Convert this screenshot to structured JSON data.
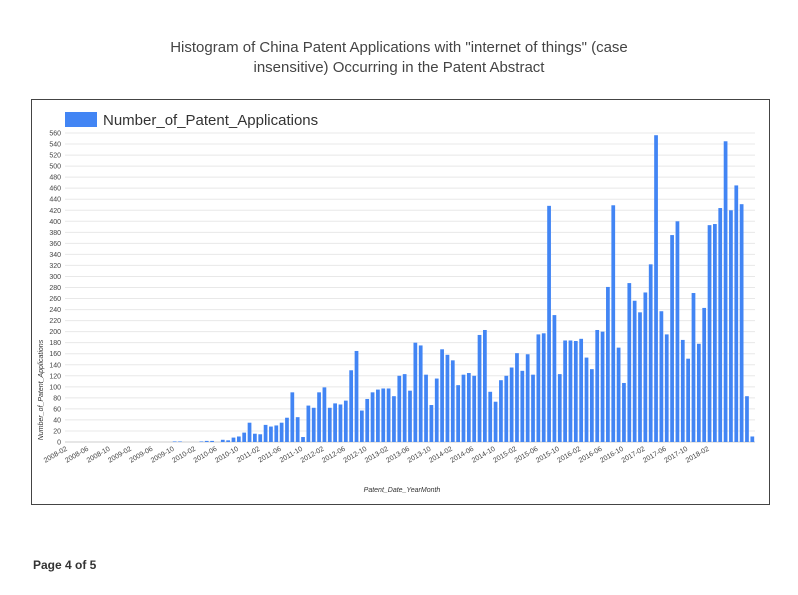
{
  "page": {
    "title_line1": "Histogram of China Patent Applications with \"internet of things\" (case",
    "title_line2": "insensitive) Occurring in the Patent Abstract",
    "footer": "Page 4 of 5"
  },
  "chart_data": {
    "type": "bar",
    "title": "Histogram of China Patent Applications with \"internet of things\" (case insensitive) Occurring in the Patent Abstract",
    "xlabel": "Patent_Date_YearMonth",
    "ylabel": "Number_of_Patent_Applications",
    "legend": {
      "position": "top-left",
      "entries": [
        "Number_of_Patent_Applications"
      ]
    },
    "ylim": [
      0,
      560
    ],
    "y_ticks": [
      0,
      20,
      40,
      60,
      80,
      100,
      120,
      140,
      160,
      180,
      200,
      220,
      240,
      260,
      280,
      300,
      320,
      340,
      360,
      380,
      400,
      420,
      440,
      460,
      480,
      500,
      520,
      540,
      560
    ],
    "x_tick_labels": [
      "2008-02",
      "2008-06",
      "2008-10",
      "2009-02",
      "2009-06",
      "2009-10",
      "2010-02",
      "2010-06",
      "2010-10",
      "2011-02",
      "2011-06",
      "2011-10",
      "2012-02",
      "2012-06",
      "2012-10",
      "2013-02",
      "2013-06",
      "2013-10",
      "2014-02",
      "2014-06",
      "2014-10",
      "2015-02",
      "2015-06",
      "2015-10",
      "2016-02",
      "2016-06",
      "2016-10",
      "2017-02",
      "2017-06",
      "2017-10",
      "2018-02"
    ],
    "grid": true,
    "colors": {
      "bar": "#4285f4",
      "grid": "#e8e8e8",
      "axis": "#cccccc"
    },
    "x_start": "2008-02",
    "x_end": "2018-02",
    "series": [
      {
        "name": "Number_of_Patent_Applications",
        "values": [
          0,
          0,
          0,
          0,
          0,
          0,
          0,
          0,
          0,
          0,
          0,
          0,
          0,
          0,
          0,
          0,
          0,
          0,
          0,
          0,
          1,
          1,
          0,
          0,
          0,
          1,
          2,
          2,
          0,
          4,
          3,
          8,
          10,
          17,
          35,
          15,
          14,
          31,
          28,
          30,
          35,
          44,
          90,
          45,
          9,
          66,
          62,
          90,
          99,
          62,
          70,
          68,
          75,
          130,
          165,
          57,
          78,
          90,
          95,
          97,
          97,
          83,
          120,
          123,
          93,
          180,
          175,
          122,
          67,
          115,
          168,
          158,
          148,
          103,
          122,
          125,
          120,
          194,
          203,
          91,
          73,
          112,
          120,
          135,
          161,
          129,
          159,
          122,
          195,
          197,
          428,
          230,
          123,
          184,
          184,
          183,
          187,
          153,
          132,
          203,
          200,
          281,
          429,
          171,
          107,
          288,
          256,
          235,
          271,
          322,
          556,
          237,
          195,
          375,
          400,
          185,
          151,
          270,
          178,
          243,
          393,
          395,
          424,
          545,
          420,
          465,
          431,
          83,
          10
        ]
      }
    ]
  }
}
